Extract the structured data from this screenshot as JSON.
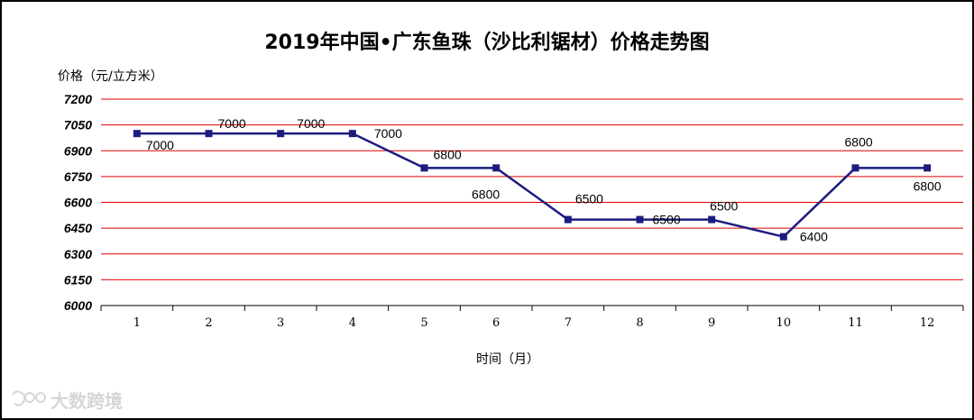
{
  "chart_data": {
    "type": "line",
    "title": "2019年中国•广东鱼珠（沙比利锯材）价格走势图",
    "ylabel": "价格（元/立方米）",
    "xlabel": "时间（月）",
    "categories": [
      "1",
      "2",
      "3",
      "4",
      "5",
      "6",
      "7",
      "8",
      "9",
      "10",
      "11",
      "12"
    ],
    "series": [
      {
        "values": [
          7000,
          7000,
          7000,
          7000,
          6800,
          6800,
          6500,
          6500,
          6500,
          6400,
          6800,
          6800
        ]
      }
    ],
    "data_labels": [
      "7000",
      "7000",
      "7000",
      "7000",
      "6800",
      "6800",
      "6500",
      "6500",
      "6500",
      "6400",
      "6800",
      "6800"
    ],
    "ylim": [
      6000,
      7200
    ],
    "yticks": [
      "7200",
      "7050",
      "6900",
      "6750",
      "6600",
      "6450",
      "6300",
      "6150",
      "6000"
    ],
    "grid": true,
    "line_color": "#1c1c80",
    "grid_color": "#e00000"
  },
  "watermark": {
    "text": "大数跨境"
  }
}
